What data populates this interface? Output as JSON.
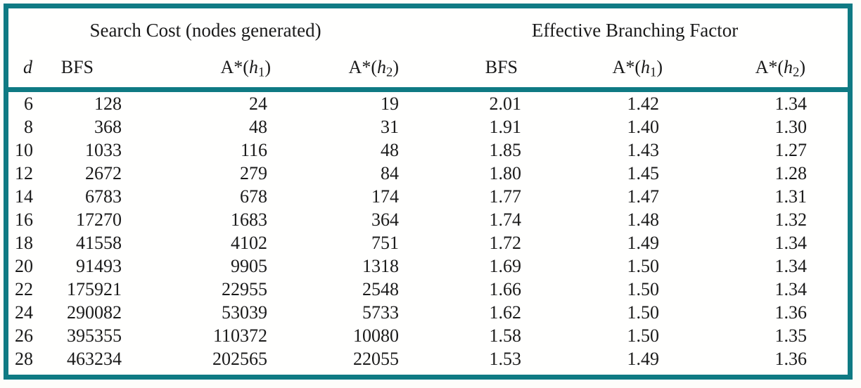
{
  "page": {
    "background_color": "#fdfdfa",
    "frame_color": "#0f7a83",
    "text_color": "#1a1a1a"
  },
  "table": {
    "group_headers": [
      {
        "label": "Search Cost (nodes generated)"
      },
      {
        "label": "Effective Branching Factor"
      }
    ],
    "columns": [
      {
        "label": "d"
      },
      {
        "label": "BFS"
      },
      {
        "base": "A*(",
        "var": "h",
        "sub": "1",
        "close": ")"
      },
      {
        "base": "A*(",
        "var": "h",
        "sub": "2",
        "close": ")"
      },
      {
        "label": "BFS"
      },
      {
        "base": "A*(",
        "var": "h",
        "sub": "1",
        "close": ")"
      },
      {
        "base": "A*(",
        "var": "h",
        "sub": "2",
        "close": ")"
      }
    ],
    "rows": [
      [
        "6",
        "128",
        "24",
        "19",
        "2.01",
        "1.42",
        "1.34"
      ],
      [
        "8",
        "368",
        "48",
        "31",
        "1.91",
        "1.40",
        "1.30"
      ],
      [
        "10",
        "1033",
        "116",
        "48",
        "1.85",
        "1.43",
        "1.27"
      ],
      [
        "12",
        "2672",
        "279",
        "84",
        "1.80",
        "1.45",
        "1.28"
      ],
      [
        "14",
        "6783",
        "678",
        "174",
        "1.77",
        "1.47",
        "1.31"
      ],
      [
        "16",
        "17270",
        "1683",
        "364",
        "1.74",
        "1.48",
        "1.32"
      ],
      [
        "18",
        "41558",
        "4102",
        "751",
        "1.72",
        "1.49",
        "1.34"
      ],
      [
        "20",
        "91493",
        "9905",
        "1318",
        "1.69",
        "1.50",
        "1.34"
      ],
      [
        "22",
        "175921",
        "22955",
        "2548",
        "1.66",
        "1.50",
        "1.34"
      ],
      [
        "24",
        "290082",
        "53039",
        "5733",
        "1.62",
        "1.50",
        "1.36"
      ],
      [
        "26",
        "395355",
        "110372",
        "10080",
        "1.58",
        "1.50",
        "1.35"
      ],
      [
        "28",
        "463234",
        "202565",
        "22055",
        "1.53",
        "1.49",
        "1.36"
      ]
    ]
  }
}
